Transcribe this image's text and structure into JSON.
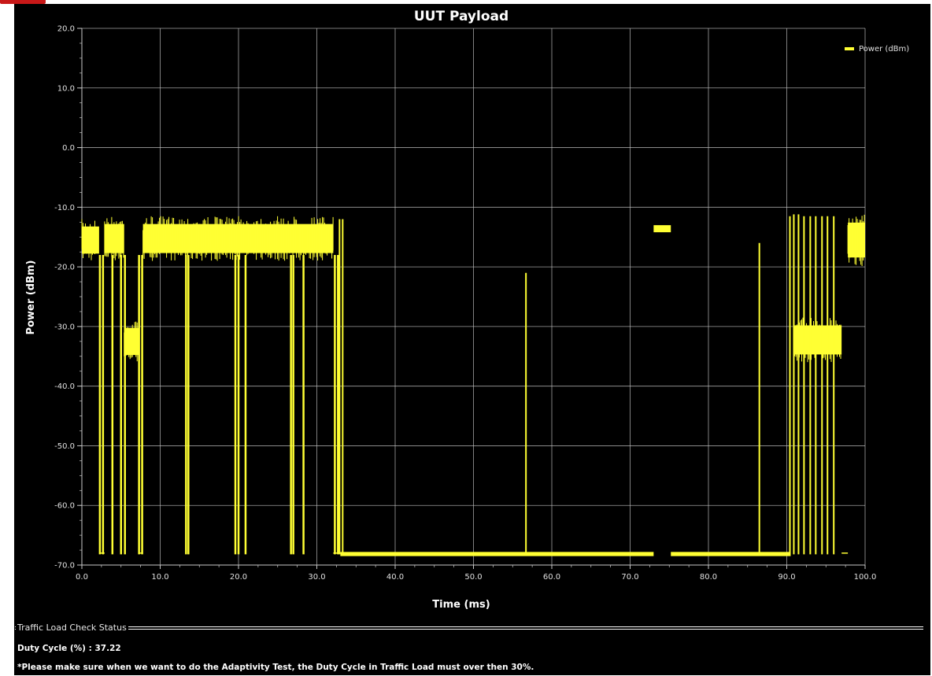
{
  "status": {
    "group_label": "Traffic Load Check Status",
    "duty_label": "Duty Cycle (%)",
    "duty_value": "37.22",
    "note": "*Please make sure when we want to do the Adaptivity Test, the Duty Cycle in Traffic Load must over then 30%."
  },
  "colors": {
    "background": "#000000",
    "series": "#ffff33",
    "grid": "#c8c8c8",
    "text": "#ffffff"
  },
  "chart_data": {
    "type": "line",
    "title": "UUT Payload",
    "xlabel": "Time (ms)",
    "ylabel": "Power (dBm)",
    "xlim": [
      0,
      100
    ],
    "ylim": [
      -70,
      20
    ],
    "x_ticks": [
      "0.0",
      "10.0",
      "20.0",
      "30.0",
      "40.0",
      "50.0",
      "60.0",
      "70.0",
      "80.0",
      "90.0",
      "100.0"
    ],
    "y_ticks": [
      "20.0",
      "10.0",
      "0.0",
      "-10.0",
      "-20.0",
      "-30.0",
      "-40.0",
      "-50.0",
      "-60.0",
      "-70.0"
    ],
    "grid": true,
    "legend_position": "top-right",
    "series": [
      {
        "name": "Power (dBm)",
        "noise_floor": -68.2,
        "segments": [
          {
            "x": [
              0.0,
              2.2
            ],
            "y_low": -19,
            "y_high": -12
          },
          {
            "x": [
              2.2,
              2.9
            ],
            "y_low": -68,
            "y_high": -68
          },
          {
            "x": [
              2.9,
              5.4
            ],
            "y_low": -19,
            "y_high": -11.5
          },
          {
            "x": [
              5.4,
              7.2
            ],
            "y_low": -36,
            "y_high": -29
          },
          {
            "x": [
              7.2,
              7.8
            ],
            "y_low": -68,
            "y_high": -68
          },
          {
            "x": [
              7.8,
              32.1
            ],
            "y_low": -19,
            "y_high": -11.5
          },
          {
            "x": [
              32.1,
              33.0
            ],
            "y_low": -68,
            "y_high": -68
          },
          {
            "x": [
              33.0,
              73.0
            ],
            "y_low": -68.5,
            "y_high": -67.8
          },
          {
            "x": [
              73.0,
              75.2
            ],
            "y_low": -14.2,
            "y_high": -13
          },
          {
            "x": [
              75.2,
              90.5
            ],
            "y_low": -68.5,
            "y_high": -67.8
          },
          {
            "x": [
              91.0,
              97.0
            ],
            "y_low": -36,
            "y_high": -28.5
          },
          {
            "x": [
              97.0,
              97.8
            ],
            "y_low": -68,
            "y_high": -68
          },
          {
            "x": [
              97.8,
              100.0
            ],
            "y_low": -20,
            "y_high": -11
          }
        ],
        "drops": [
          {
            "x": 2.3
          },
          {
            "x": 2.7
          },
          {
            "x": 3.9
          },
          {
            "x": 5.0
          },
          {
            "x": 5.5
          },
          {
            "x": 7.3
          },
          {
            "x": 7.7
          },
          {
            "x": 13.3
          },
          {
            "x": 13.6
          },
          {
            "x": 19.6
          },
          {
            "x": 20.0
          },
          {
            "x": 20.9
          },
          {
            "x": 26.7
          },
          {
            "x": 27.0
          },
          {
            "x": 28.3
          },
          {
            "x": 32.3
          },
          {
            "x": 32.7
          }
        ],
        "spikes": [
          {
            "x": 32.9,
            "y": -12
          },
          {
            "x": 33.3,
            "y": -12
          },
          {
            "x": 56.7,
            "y": -21
          },
          {
            "x": 86.5,
            "y": -16
          },
          {
            "x": 90.4,
            "y": -11.5
          },
          {
            "x": 90.9,
            "y": -11.2
          },
          {
            "x": 91.5,
            "y": -11.2
          },
          {
            "x": 92.2,
            "y": -11.5
          },
          {
            "x": 93.0,
            "y": -11.5
          },
          {
            "x": 93.7,
            "y": -11.5
          },
          {
            "x": 94.5,
            "y": -11.5
          },
          {
            "x": 95.2,
            "y": -11.5
          },
          {
            "x": 96.0,
            "y": -11.5
          }
        ]
      }
    ]
  }
}
